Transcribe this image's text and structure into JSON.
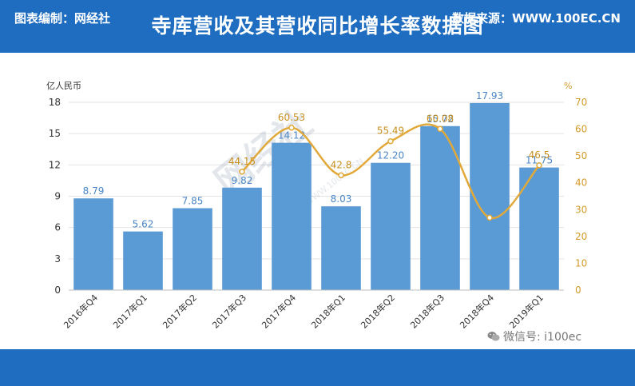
{
  "header": {
    "title": "寺库营收及其营收同比增长率数据图"
  },
  "footer": {
    "left_label": "图表编制：网经社",
    "right_label": "数据来源：WWW.100EC.CN"
  },
  "wechat": {
    "label": "微信号: i100ec",
    "icon": "wechat-icon"
  },
  "watermark": {
    "text": "网经社",
    "url": "WWW.100EC.CN"
  },
  "colors": {
    "bar": "#5b9bd5",
    "line": "#e1a93a",
    "header": "#1f6dc0",
    "axis_left": "#333333",
    "axis_right": "#d49b2b"
  },
  "chart_data": {
    "type": "bar",
    "categories": [
      "2016年Q4",
      "2017年Q1",
      "2017年Q2",
      "2017年Q3",
      "2017年Q4",
      "2018年Q1",
      "2018年Q2",
      "2018年Q3",
      "2018年Q4",
      "2019年Q1"
    ],
    "series": [
      {
        "name": "",
        "type": "bar",
        "axis": "left",
        "values": [
          8.79,
          5.62,
          7.85,
          9.82,
          14.12,
          8.03,
          12.2,
          15.72,
          17.93,
          11.75
        ],
        "labels": [
          "8.79",
          "5.62",
          "7.85",
          "9.82",
          "14.12",
          "8.03",
          "12.20",
          "15.72",
          "17.93",
          "11.75"
        ]
      },
      {
        "name": "",
        "type": "line",
        "axis": "right",
        "smooth": true,
        "values": [
          null,
          null,
          null,
          44.15,
          60.53,
          42.8,
          55.49,
          60.08,
          27,
          46.5
        ],
        "labels": [
          "",
          "",
          "",
          "44.15",
          "60.53",
          "42.8",
          "55.49",
          "60.08",
          "",
          "46.5"
        ]
      }
    ],
    "ylabel": "亿人民币",
    "y2label": "%",
    "ylim": [
      0,
      18
    ],
    "yticks": [
      "0",
      "3",
      "6",
      "9",
      "12",
      "15",
      "18"
    ],
    "y2lim": [
      0,
      70
    ],
    "y2ticks": [
      "0",
      "10",
      "20",
      "30",
      "40",
      "50",
      "60",
      "70"
    ],
    "grid": true,
    "legend": "none"
  }
}
